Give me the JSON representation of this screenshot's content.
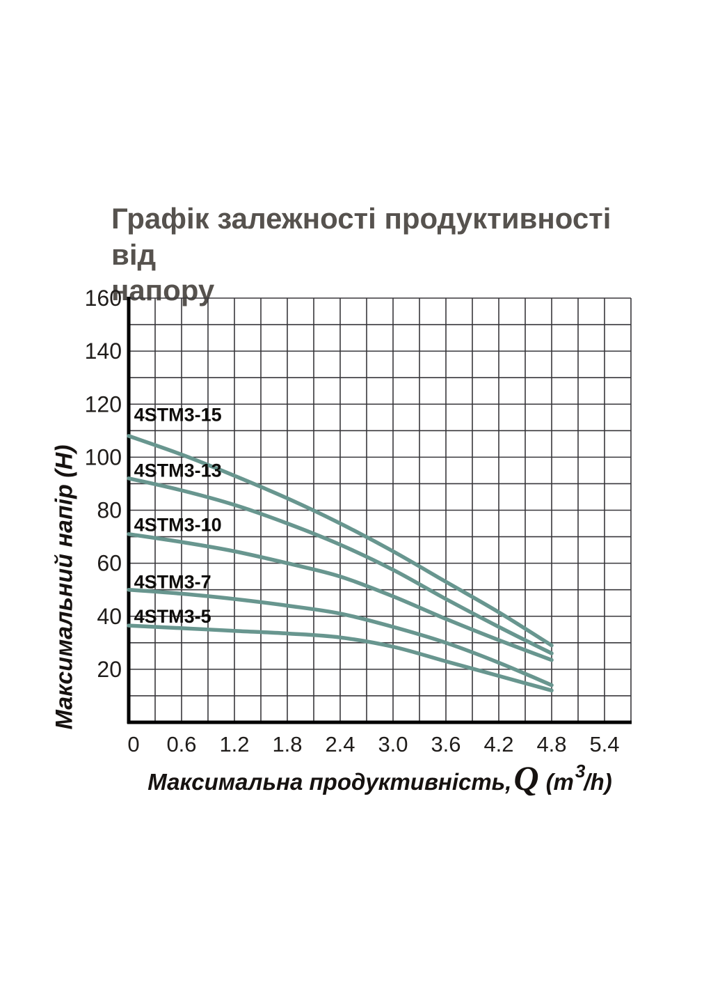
{
  "title": {
    "line1": "Графік залежності продуктивності від",
    "line2": "напору",
    "color": "#56524e"
  },
  "y_axis": {
    "title": "Максимальний напір (H)",
    "tick_labels": [
      "20",
      "40",
      "60",
      "80",
      "100",
      "120",
      "140",
      "160"
    ]
  },
  "x_axis": {
    "title_prefix": "Максимальна продуктивність,",
    "q_symbol": "Q",
    "unit_prefix": "(m",
    "unit_sup": "3",
    "unit_suffix": "/h)",
    "tick_labels": [
      "0",
      "0.6",
      "1.2",
      "1.8",
      "2.4",
      "3.0",
      "3.6",
      "4.2",
      "4.8",
      "5.4"
    ]
  },
  "chart_data": {
    "type": "line",
    "title": "Графік залежності продуктивності від напору",
    "xlabel": "Максимальна продуктивність, Q (m³/h)",
    "ylabel": "Максимальний напір (H)",
    "x": [
      0,
      0.6,
      1.2,
      1.8,
      2.4,
      3.0,
      3.6,
      4.2,
      4.8
    ],
    "xlim": [
      0,
      5.7
    ],
    "ylim": [
      0,
      160
    ],
    "x_tick_step": 0.6,
    "grid_x_step": 0.3,
    "grid_y_step": 10,
    "grid": true,
    "legend_position": "inline-left-labels",
    "line_color": "#68968f",
    "grid_color": "#38373b",
    "axis_color": "#000000",
    "series": [
      {
        "name": "4STM3-15",
        "color": "#68968f",
        "values": [
          108,
          101,
          93,
          84.5,
          75,
          64.5,
          53,
          41.5,
          29
        ],
        "label_pos": [
          0.06,
          116
        ]
      },
      {
        "name": "4STM3-13",
        "color": "#68968f",
        "values": [
          92,
          87.5,
          82,
          75,
          67,
          57.5,
          46.5,
          36,
          26
        ],
        "label_pos": [
          0.06,
          95
        ]
      },
      {
        "name": "4STM3-10",
        "color": "#68968f",
        "values": [
          71,
          68,
          64.5,
          60,
          55,
          47.5,
          39,
          31,
          23.5
        ],
        "label_pos": [
          0.06,
          74.5
        ]
      },
      {
        "name": "4STM3-7",
        "color": "#68968f",
        "values": [
          50,
          48.5,
          46.5,
          44,
          41,
          36,
          30,
          22.5,
          14
        ],
        "label_pos": [
          0.06,
          53
        ]
      },
      {
        "name": "4STM3-5",
        "color": "#68968f",
        "values": [
          36.5,
          35.5,
          34.5,
          33.5,
          32,
          28.5,
          23,
          17.5,
          12
        ],
        "label_pos": [
          0.06,
          40
        ]
      }
    ]
  }
}
